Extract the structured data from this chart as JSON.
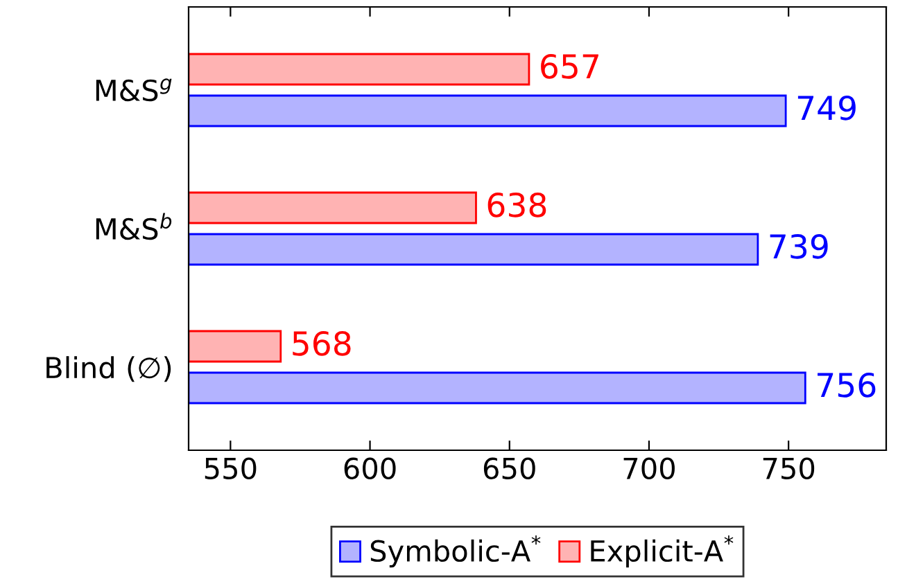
{
  "chart_data": {
    "type": "bar",
    "orientation": "horizontal",
    "categories": [
      "M&S$^{g}$",
      "M&S$^{b}$",
      "Blind (∅)"
    ],
    "series": [
      {
        "name": "Symbolic-A$^{*}$",
        "color": "#b3b3ff",
        "values": [
          749,
          739,
          756
        ]
      },
      {
        "name": "Explicit-A$^{*}$",
        "color": "#ffb3b3",
        "values": [
          657,
          638,
          568
        ]
      }
    ],
    "xlim": [
      535,
      785
    ],
    "xticks": [
      550,
      600,
      650,
      700,
      750
    ],
    "data_labels": true,
    "legend": "bottom",
    "grid": false
  }
}
